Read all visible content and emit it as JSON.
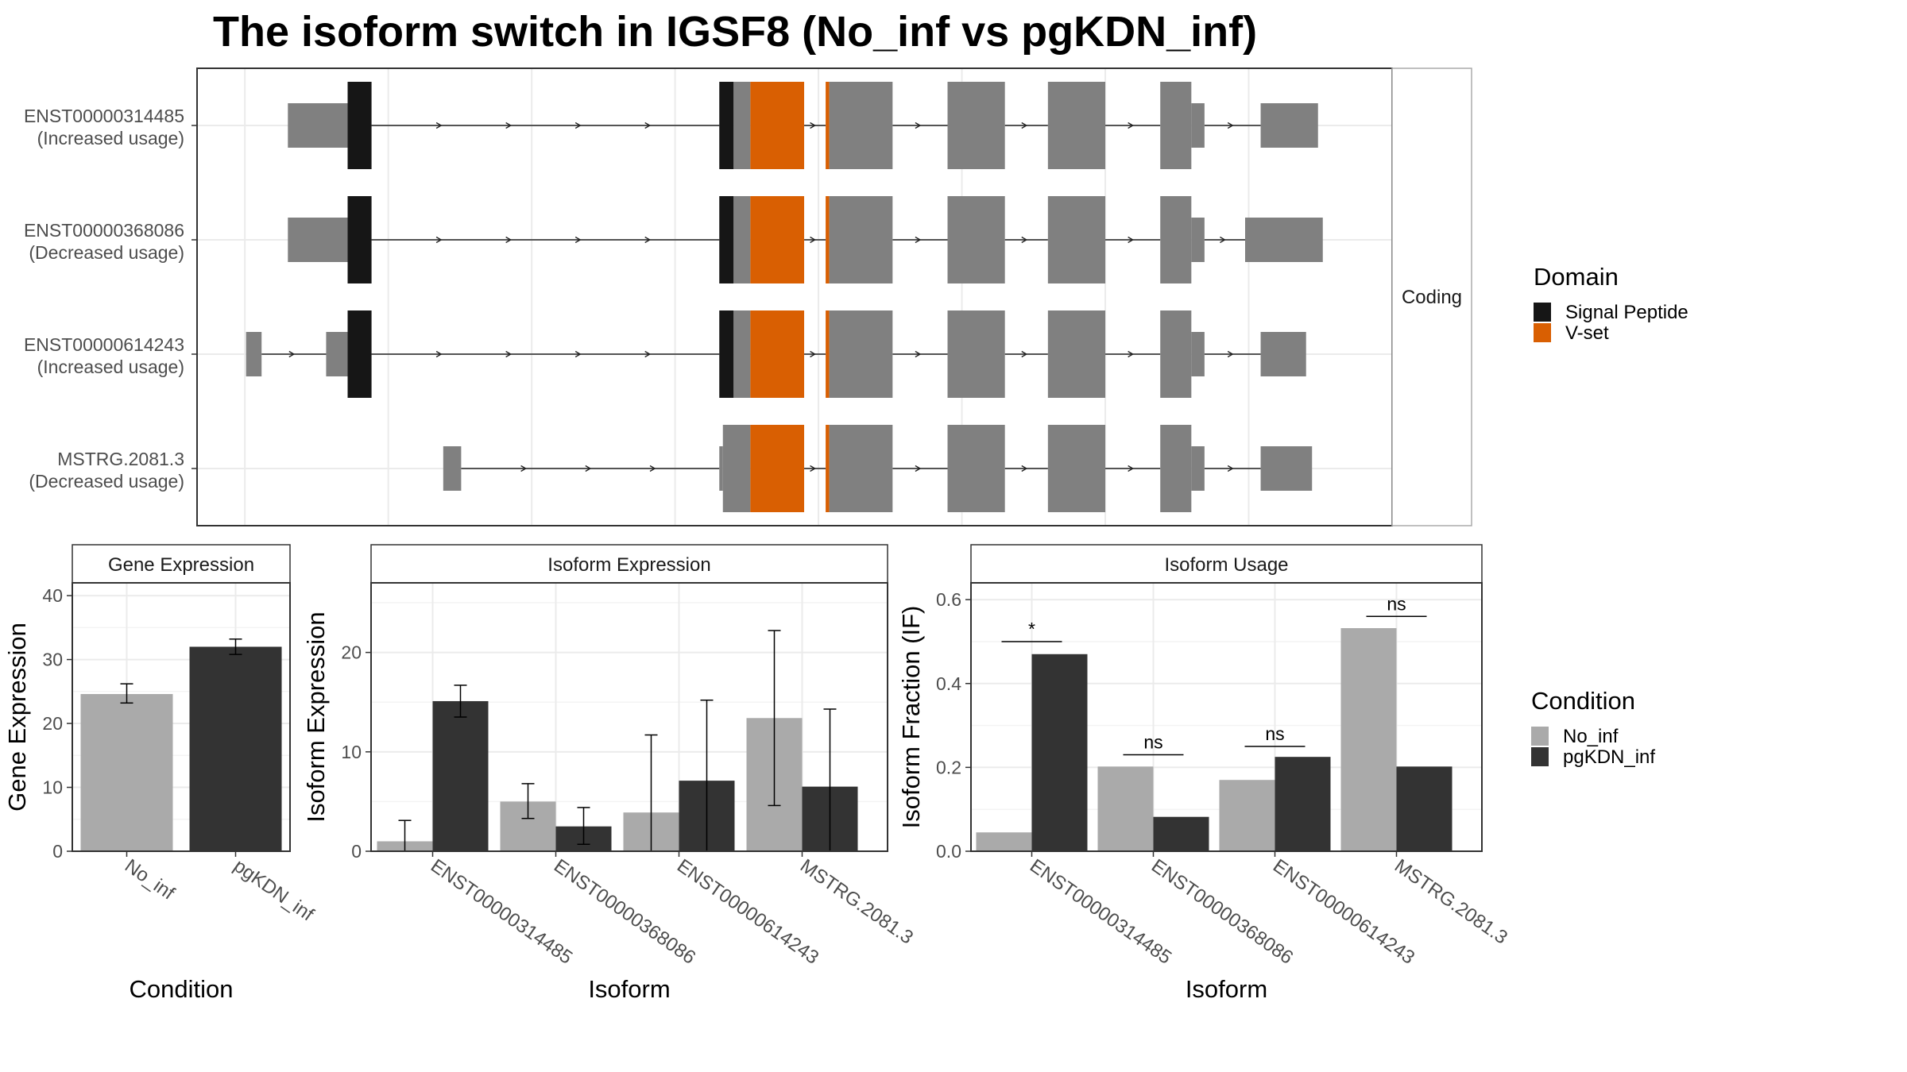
{
  "title": "The isoform switch in IGSF8 (No_inf vs pgKDN_inf)",
  "colors": {
    "no_inf": "#AAAAAA",
    "pgkdn_inf": "#333333",
    "signal_peptide": "#161616",
    "v_set": "#D95F02",
    "exon": "#808080",
    "grid": "#EBEBEB",
    "panel_border": "#333333",
    "strip_fill": "#FFFFFF",
    "text_dark": "#000000",
    "text_tick": "#4D4D4D"
  },
  "structure": {
    "facet_label": "Coding",
    "x_range": [
      0,
      100
    ],
    "gridlines": [
      4,
      16,
      28,
      40,
      52,
      64,
      76,
      88
    ],
    "rows": [
      {
        "id": "ENST00000314485",
        "usage": "(Increased usage)",
        "parts": [
          {
            "s": 7.6,
            "e": 12.6,
            "t": "utr"
          },
          {
            "s": 12.6,
            "e": 14.6,
            "t": "sp"
          },
          {
            "s": 43.7,
            "e": 44.9,
            "t": "sp"
          },
          {
            "s": 44.9,
            "e": 46.3,
            "t": "cds"
          },
          {
            "s": 46.3,
            "e": 50.8,
            "t": "vset"
          },
          {
            "s": 52.6,
            "e": 52.9,
            "t": "vset"
          },
          {
            "s": 52.9,
            "e": 58.2,
            "t": "cds"
          },
          {
            "s": 62.8,
            "e": 67.6,
            "t": "cds"
          },
          {
            "s": 71.2,
            "e": 76.0,
            "t": "cds"
          },
          {
            "s": 80.6,
            "e": 83.2,
            "t": "cds"
          },
          {
            "s": 83.2,
            "e": 84.3,
            "t": "utr"
          },
          {
            "s": 89.0,
            "e": 93.8,
            "t": "utr"
          }
        ]
      },
      {
        "id": "ENST00000368086",
        "usage": "(Decreased usage)",
        "parts": [
          {
            "s": 7.6,
            "e": 12.6,
            "t": "utr"
          },
          {
            "s": 12.6,
            "e": 14.6,
            "t": "sp"
          },
          {
            "s": 43.7,
            "e": 44.9,
            "t": "sp"
          },
          {
            "s": 44.9,
            "e": 46.3,
            "t": "cds"
          },
          {
            "s": 46.3,
            "e": 50.8,
            "t": "vset"
          },
          {
            "s": 52.6,
            "e": 52.9,
            "t": "vset"
          },
          {
            "s": 52.9,
            "e": 58.2,
            "t": "cds"
          },
          {
            "s": 62.8,
            "e": 67.6,
            "t": "cds"
          },
          {
            "s": 71.2,
            "e": 76.0,
            "t": "cds"
          },
          {
            "s": 80.6,
            "e": 83.2,
            "t": "cds"
          },
          {
            "s": 83.2,
            "e": 84.3,
            "t": "utr"
          },
          {
            "s": 87.7,
            "e": 94.2,
            "t": "utr"
          }
        ]
      },
      {
        "id": "ENST00000614243",
        "usage": "(Increased usage)",
        "parts": [
          {
            "s": 4.1,
            "e": 5.4,
            "t": "utr"
          },
          {
            "s": 10.8,
            "e": 12.6,
            "t": "utr"
          },
          {
            "s": 12.6,
            "e": 14.6,
            "t": "sp"
          },
          {
            "s": 43.7,
            "e": 44.9,
            "t": "sp"
          },
          {
            "s": 44.9,
            "e": 46.3,
            "t": "cds"
          },
          {
            "s": 46.3,
            "e": 50.8,
            "t": "vset"
          },
          {
            "s": 52.6,
            "e": 52.9,
            "t": "vset"
          },
          {
            "s": 52.9,
            "e": 58.2,
            "t": "cds"
          },
          {
            "s": 62.8,
            "e": 67.6,
            "t": "cds"
          },
          {
            "s": 71.2,
            "e": 76.0,
            "t": "cds"
          },
          {
            "s": 80.6,
            "e": 83.2,
            "t": "cds"
          },
          {
            "s": 83.2,
            "e": 84.3,
            "t": "utr"
          },
          {
            "s": 89.0,
            "e": 92.8,
            "t": "utr"
          }
        ]
      },
      {
        "id": "MSTRG.2081.3",
        "usage": "(Decreased usage)",
        "parts": [
          {
            "s": 20.6,
            "e": 22.1,
            "t": "utr"
          },
          {
            "s": 43.7,
            "e": 44.0,
            "t": "utr"
          },
          {
            "s": 44.0,
            "e": 46.3,
            "t": "cds"
          },
          {
            "s": 46.3,
            "e": 50.8,
            "t": "vset"
          },
          {
            "s": 52.6,
            "e": 52.9,
            "t": "vset"
          },
          {
            "s": 52.9,
            "e": 58.2,
            "t": "cds"
          },
          {
            "s": 62.8,
            "e": 67.6,
            "t": "cds"
          },
          {
            "s": 71.2,
            "e": 76.0,
            "t": "cds"
          },
          {
            "s": 80.6,
            "e": 83.2,
            "t": "cds"
          },
          {
            "s": 83.2,
            "e": 84.3,
            "t": "utr"
          },
          {
            "s": 89.0,
            "e": 93.3,
            "t": "utr"
          }
        ]
      }
    ]
  },
  "legend_domain": {
    "title": "Domain",
    "items": [
      {
        "label": "Signal Peptide",
        "color": "#161616"
      },
      {
        "label": "V-set",
        "color": "#D95F02"
      }
    ]
  },
  "legend_condition": {
    "title": "Condition",
    "items": [
      {
        "label": "No_inf",
        "color": "#AAAAAA"
      },
      {
        "label": "pgKDN_inf",
        "color": "#333333"
      }
    ]
  },
  "chart_data": [
    {
      "type": "bar",
      "strip": "Gene Expression",
      "xlabel": "Condition",
      "ylabel": "Gene Expression",
      "ylim": [
        0,
        42
      ],
      "yticks": [
        0,
        10,
        20,
        30,
        40
      ],
      "categories": [
        "No_inf",
        "pgKDN_inf"
      ],
      "series": [
        {
          "values": [
            24.6,
            32.0
          ],
          "err_low": [
            23.2,
            30.8
          ],
          "err_high": [
            26.2,
            33.2
          ]
        }
      ]
    },
    {
      "type": "bar",
      "strip": "Isoform Expression",
      "xlabel": "Isoform",
      "ylabel": "Isoform Expression",
      "ylim": [
        0,
        27
      ],
      "yticks": [
        0,
        10,
        20
      ],
      "categories": [
        "ENST00000314485",
        "ENST00000368086",
        "ENST00000614243",
        "MSTRG.2081.3"
      ],
      "series": [
        {
          "name": "No_inf",
          "values": [
            1.0,
            5.0,
            3.9,
            13.4
          ],
          "err_low": [
            0.0,
            3.3,
            0.0,
            4.6
          ],
          "err_high": [
            3.1,
            6.8,
            11.7,
            22.2
          ]
        },
        {
          "name": "pgKDN_inf",
          "values": [
            15.1,
            2.5,
            7.1,
            6.5
          ],
          "err_low": [
            13.5,
            0.7,
            0.0,
            0.0
          ],
          "err_high": [
            16.7,
            4.4,
            15.2,
            14.3
          ]
        }
      ]
    },
    {
      "type": "bar",
      "strip": "Isoform Usage",
      "xlabel": "Isoform",
      "ylabel": "Isoform Fraction (IF)",
      "ylim": [
        0,
        0.64
      ],
      "yticks": [
        0.0,
        0.2,
        0.4,
        0.6
      ],
      "categories": [
        "ENST00000314485",
        "ENST00000368086",
        "ENST00000614243",
        "MSTRG.2081.3"
      ],
      "series": [
        {
          "name": "No_inf",
          "values": [
            0.045,
            0.202,
            0.17,
            0.532
          ]
        },
        {
          "name": "pgKDN_inf",
          "values": [
            0.47,
            0.082,
            0.225,
            0.202
          ]
        }
      ],
      "significance": [
        {
          "label": "*",
          "y": 0.5
        },
        {
          "label": "ns",
          "y": 0.23
        },
        {
          "label": "ns",
          "y": 0.25
        },
        {
          "label": "ns",
          "y": 0.56
        }
      ]
    }
  ]
}
